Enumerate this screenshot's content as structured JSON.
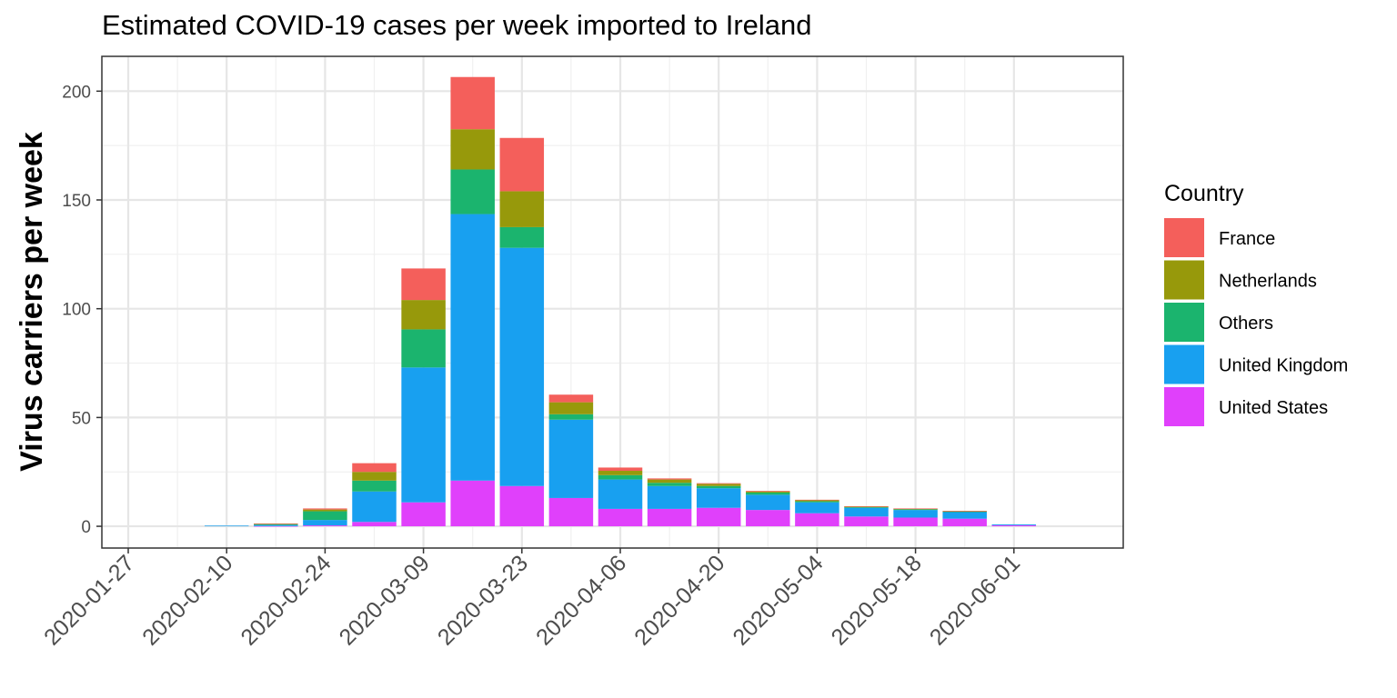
{
  "chart_data": {
    "type": "bar",
    "stacked": true,
    "title": "Estimated COVID-19 cases per week imported to Ireland",
    "xlabel": "",
    "ylabel": "Virus carriers per week",
    "ylim": [
      -10,
      216
    ],
    "y_ticks": [
      0,
      50,
      100,
      150,
      200
    ],
    "x_ticks": [
      "2020-01-27",
      "2020-02-10",
      "2020-02-24",
      "2020-03-09",
      "2020-03-23",
      "2020-04-06",
      "2020-04-20",
      "2020-05-04",
      "2020-05-18",
      "2020-06-01"
    ],
    "grid": true,
    "legend_position": "right",
    "legend_title": "Country",
    "categories": [
      "2020-01-27",
      "2020-02-03",
      "2020-02-10",
      "2020-02-17",
      "2020-02-24",
      "2020-03-02",
      "2020-03-09",
      "2020-03-16",
      "2020-03-23",
      "2020-03-30",
      "2020-04-06",
      "2020-04-13",
      "2020-04-20",
      "2020-04-27",
      "2020-05-04",
      "2020-05-11",
      "2020-05-18",
      "2020-05-25",
      "2020-06-01"
    ],
    "series": [
      {
        "name": "United States",
        "color": "#E040FB",
        "values": [
          0,
          0,
          0,
          0.1,
          0.4,
          2,
          11,
          21,
          18.5,
          13,
          8,
          8,
          8.5,
          7.5,
          6,
          4.5,
          4,
          3.5,
          0.5
        ]
      },
      {
        "name": "United Kingdom",
        "color": "#18A0F0",
        "values": [
          0,
          0,
          0.3,
          0.5,
          2.5,
          14,
          62,
          122.5,
          109.5,
          36,
          13.5,
          10.5,
          9,
          7,
          5,
          4,
          3.5,
          3,
          0.4
        ]
      },
      {
        "name": "Others",
        "color": "#1BB46E",
        "values": [
          0,
          0,
          0,
          0.4,
          4,
          5,
          17.5,
          20.5,
          9.5,
          2.5,
          2,
          1.5,
          1,
          1,
          0.5,
          0.3,
          0.3,
          0.3,
          0
        ]
      },
      {
        "name": "Netherlands",
        "color": "#97990B",
        "values": [
          0,
          0,
          0,
          0.2,
          0.8,
          4,
          13.5,
          18.5,
          16.5,
          5.5,
          2,
          1.5,
          1,
          0.5,
          0.5,
          0.3,
          0.3,
          0.2,
          0
        ]
      },
      {
        "name": "France",
        "color": "#F45F5B",
        "values": [
          0,
          0,
          0,
          0.1,
          0.5,
          4,
          14.5,
          24,
          24.5,
          3.5,
          1.5,
          0.5,
          0.3,
          0.3,
          0.2,
          0.1,
          0.1,
          0.1,
          0
        ]
      }
    ],
    "legend_order": [
      "France",
      "Netherlands",
      "Others",
      "United Kingdom",
      "United States"
    ]
  }
}
